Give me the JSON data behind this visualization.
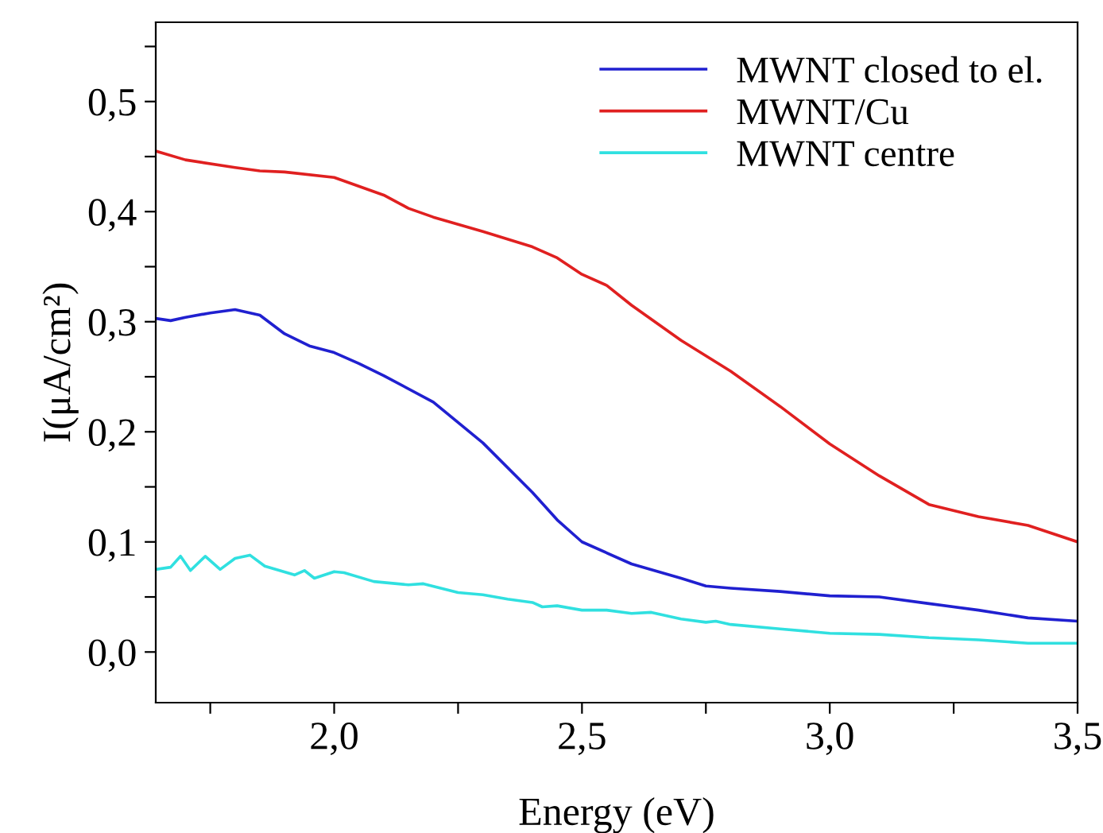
{
  "chart_data": {
    "type": "line",
    "xlabel": "Energy (eV)",
    "ylabel": "I(μA/cm²)",
    "xlim": [
      1.64,
      3.5
    ],
    "ylim": [
      -0.046,
      0.572
    ],
    "xticks": [
      {
        "value": 1.75,
        "label": null
      },
      {
        "value": 2.0,
        "label": "2,0"
      },
      {
        "value": 2.25,
        "label": null
      },
      {
        "value": 2.5,
        "label": "2,5"
      },
      {
        "value": 2.75,
        "label": null
      },
      {
        "value": 3.0,
        "label": "3,0"
      },
      {
        "value": 3.25,
        "label": null
      },
      {
        "value": 3.5,
        "label": "3,5"
      }
    ],
    "yticks": [
      {
        "value": 0.0,
        "label": "0,0"
      },
      {
        "value": 0.05,
        "label": null
      },
      {
        "value": 0.1,
        "label": "0,1"
      },
      {
        "value": 0.15,
        "label": null
      },
      {
        "value": 0.2,
        "label": "0,2"
      },
      {
        "value": 0.25,
        "label": null
      },
      {
        "value": 0.3,
        "label": "0,3"
      },
      {
        "value": 0.35,
        "label": null
      },
      {
        "value": 0.4,
        "label": "0,4"
      },
      {
        "value": 0.45,
        "label": null
      },
      {
        "value": 0.5,
        "label": "0,5"
      },
      {
        "value": 0.55,
        "label": null
      }
    ],
    "legend": "top right",
    "grid": false,
    "series": [
      {
        "name": "MWNT closed to el.",
        "color": "#2020d0",
        "x": [
          1.64,
          1.67,
          1.7,
          1.75,
          1.8,
          1.85,
          1.9,
          1.95,
          2.0,
          2.05,
          2.1,
          2.2,
          2.3,
          2.4,
          2.45,
          2.5,
          2.6,
          2.7,
          2.75,
          2.8,
          2.9,
          3.0,
          3.1,
          3.2,
          3.3,
          3.4,
          3.5
        ],
        "values": [
          0.303,
          0.301,
          0.304,
          0.308,
          0.311,
          0.306,
          0.289,
          0.278,
          0.272,
          0.262,
          0.251,
          0.227,
          0.19,
          0.145,
          0.12,
          0.1,
          0.08,
          0.067,
          0.06,
          0.058,
          0.055,
          0.051,
          0.05,
          0.044,
          0.038,
          0.031,
          0.028
        ]
      },
      {
        "name": "MWNT/Cu",
        "color": "#e02020",
        "x": [
          1.64,
          1.7,
          1.8,
          1.85,
          1.9,
          2.0,
          2.1,
          2.15,
          2.2,
          2.3,
          2.4,
          2.45,
          2.5,
          2.55,
          2.6,
          2.7,
          2.8,
          2.9,
          3.0,
          3.1,
          3.2,
          3.3,
          3.4,
          3.5
        ],
        "values": [
          0.455,
          0.447,
          0.44,
          0.437,
          0.436,
          0.431,
          0.415,
          0.403,
          0.395,
          0.382,
          0.368,
          0.358,
          0.343,
          0.333,
          0.315,
          0.283,
          0.255,
          0.223,
          0.189,
          0.16,
          0.134,
          0.123,
          0.115,
          0.1
        ]
      },
      {
        "name": "MWNT centre",
        "color": "#30e0e0",
        "x": [
          1.64,
          1.67,
          1.69,
          1.71,
          1.74,
          1.77,
          1.8,
          1.83,
          1.86,
          1.92,
          1.94,
          1.96,
          2.0,
          2.02,
          2.08,
          2.15,
          2.18,
          2.25,
          2.3,
          2.35,
          2.4,
          2.42,
          2.45,
          2.5,
          2.55,
          2.6,
          2.64,
          2.7,
          2.75,
          2.77,
          2.8,
          2.9,
          3.0,
          3.1,
          3.2,
          3.3,
          3.4,
          3.5
        ],
        "values": [
          0.075,
          0.077,
          0.087,
          0.074,
          0.087,
          0.075,
          0.085,
          0.088,
          0.078,
          0.07,
          0.074,
          0.067,
          0.073,
          0.072,
          0.064,
          0.061,
          0.062,
          0.054,
          0.052,
          0.048,
          0.045,
          0.041,
          0.042,
          0.038,
          0.038,
          0.035,
          0.036,
          0.03,
          0.027,
          0.028,
          0.025,
          0.021,
          0.017,
          0.016,
          0.013,
          0.011,
          0.008,
          0.008
        ]
      }
    ]
  }
}
